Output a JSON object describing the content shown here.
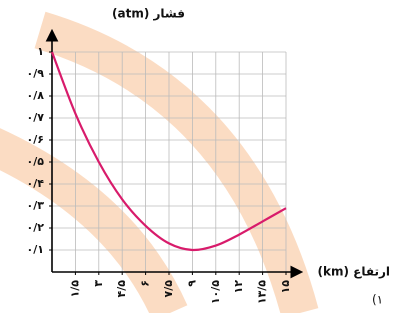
{
  "chart_data": {
    "type": "line",
    "y_label": "فشار (atm)",
    "x_label": "ارتفاع (km)",
    "item_number": "(۱",
    "series": [
      {
        "color": "#d81b6b",
        "x": [
          0,
          1.5,
          3,
          4.5,
          6,
          7.5,
          9,
          10.5,
          12,
          13.5,
          15
        ],
        "values": [
          1,
          0.72,
          0.5,
          0.33,
          0.21,
          0.13,
          0.1,
          0.12,
          0.17,
          0.23,
          0.29
        ]
      }
    ],
    "xlim": [
      0,
      15
    ],
    "ylim": [
      0,
      1
    ],
    "xticks": [
      {
        "value": 1.5,
        "label": "۱/۵"
      },
      {
        "value": 3,
        "label": "۳"
      },
      {
        "value": 4.5,
        "label": "۴/۵"
      },
      {
        "value": 6,
        "label": "۶"
      },
      {
        "value": 7.5,
        "label": "۷/۵"
      },
      {
        "value": 9,
        "label": "۹"
      },
      {
        "value": 10.5,
        "label": "۱۰/۵"
      },
      {
        "value": 12,
        "label": "۱۲"
      },
      {
        "value": 13.5,
        "label": "۱۳/۵"
      },
      {
        "value": 15,
        "label": "۱۵"
      }
    ],
    "yticks": [
      {
        "value": 0.1,
        "label": "۰/۱"
      },
      {
        "value": 0.2,
        "label": "۰/۲"
      },
      {
        "value": 0.3,
        "label": "۰/۳"
      },
      {
        "value": 0.4,
        "label": "۰/۴"
      },
      {
        "value": 0.5,
        "label": "۰/۵"
      },
      {
        "value": 0.6,
        "label": "۰/۶"
      },
      {
        "value": 0.7,
        "label": "۰/۷"
      },
      {
        "value": 0.8,
        "label": "۰/۸"
      },
      {
        "value": 0.9,
        "label": "۰/۹"
      },
      {
        "value": 1,
        "label": "۱"
      }
    ],
    "grid": true
  }
}
